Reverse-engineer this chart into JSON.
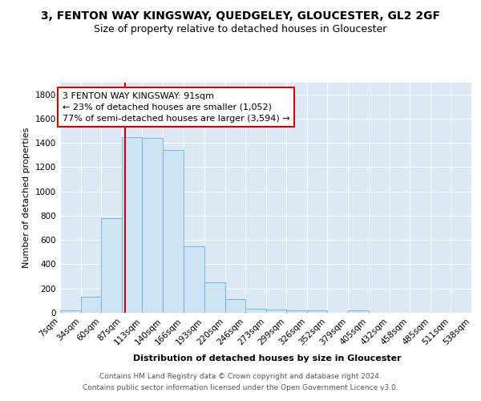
{
  "title_line1": "3, FENTON WAY KINGSWAY, QUEDGELEY, GLOUCESTER, GL2 2GF",
  "title_line2": "Size of property relative to detached houses in Gloucester",
  "xlabel": "Distribution of detached houses by size in Gloucester",
  "ylabel": "Number of detached properties",
  "bin_edges": [
    7,
    34,
    60,
    87,
    113,
    140,
    166,
    193,
    220,
    246,
    273,
    299,
    326,
    352,
    379,
    405,
    432,
    458,
    485,
    511,
    538
  ],
  "bin_labels": [
    "7sqm",
    "34sqm",
    "60sqm",
    "87sqm",
    "113sqm",
    "140sqm",
    "166sqm",
    "193sqm",
    "220sqm",
    "246sqm",
    "273sqm",
    "299sqm",
    "326sqm",
    "352sqm",
    "379sqm",
    "405sqm",
    "432sqm",
    "458sqm",
    "485sqm",
    "511sqm",
    "538sqm"
  ],
  "bar_heights": [
    20,
    130,
    780,
    1450,
    1440,
    1340,
    550,
    248,
    113,
    35,
    25,
    20,
    20,
    0,
    20,
    0,
    0,
    0,
    0,
    0
  ],
  "vline_x": 91,
  "bar_color": "#cde4f5",
  "bar_edge_color": "#6aaed6",
  "vline_color": "#cc0000",
  "annotation_text": "3 FENTON WAY KINGSWAY: 91sqm\n← 23% of detached houses are smaller (1,052)\n77% of semi-detached houses are larger (3,594) →",
  "annotation_box_color": "#ffffff",
  "annotation_box_edge": "#cc0000",
  "ylim": [
    0,
    1900
  ],
  "yticks": [
    0,
    200,
    400,
    600,
    800,
    1000,
    1200,
    1400,
    1600,
    1800
  ],
  "background_color": "#dce9f5",
  "footer_text": "Contains HM Land Registry data © Crown copyright and database right 2024.\nContains public sector information licensed under the Open Government Licence v3.0.",
  "title_fontsize": 10,
  "subtitle_fontsize": 9,
  "axis_label_fontsize": 8,
  "tick_fontsize": 7.5,
  "annotation_fontsize": 8,
  "footer_fontsize": 6.5
}
